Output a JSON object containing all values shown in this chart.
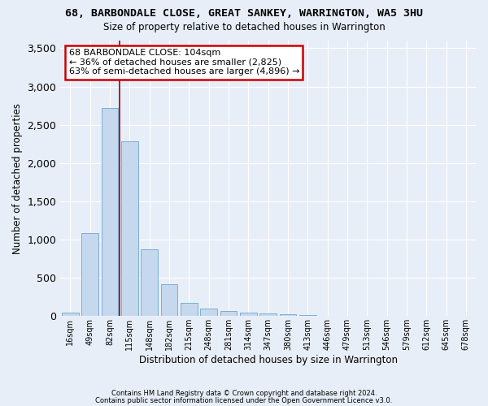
{
  "title": "68, BARBONDALE CLOSE, GREAT SANKEY, WARRINGTON, WA5 3HU",
  "subtitle": "Size of property relative to detached houses in Warrington",
  "xlabel": "Distribution of detached houses by size in Warrington",
  "ylabel": "Number of detached properties",
  "bar_color": "#c5d8ee",
  "bar_edge_color": "#7aafd4",
  "background_color": "#e8eef8",
  "grid_color": "#ffffff",
  "categories": [
    "16sqm",
    "49sqm",
    "82sqm",
    "115sqm",
    "148sqm",
    "182sqm",
    "215sqm",
    "248sqm",
    "281sqm",
    "314sqm",
    "347sqm",
    "380sqm",
    "413sqm",
    "446sqm",
    "479sqm",
    "513sqm",
    "546sqm",
    "579sqm",
    "612sqm",
    "645sqm",
    "678sqm"
  ],
  "values": [
    50,
    1090,
    2720,
    2280,
    870,
    415,
    170,
    100,
    65,
    50,
    30,
    20,
    15,
    8,
    3,
    2,
    1,
    0,
    0,
    0,
    0
  ],
  "ylim": [
    0,
    3600
  ],
  "yticks": [
    0,
    500,
    1000,
    1500,
    2000,
    2500,
    3000,
    3500
  ],
  "vline_x_index": 2.5,
  "annotation_text": "68 BARBONDALE CLOSE: 104sqm\n← 36% of detached houses are smaller (2,825)\n63% of semi-detached houses are larger (4,896) →",
  "annotation_box_color": "#ffffff",
  "annotation_box_edge": "#cc0000",
  "footnote1": "Contains HM Land Registry data © Crown copyright and database right 2024.",
  "footnote2": "Contains public sector information licensed under the Open Government Licence v3.0."
}
